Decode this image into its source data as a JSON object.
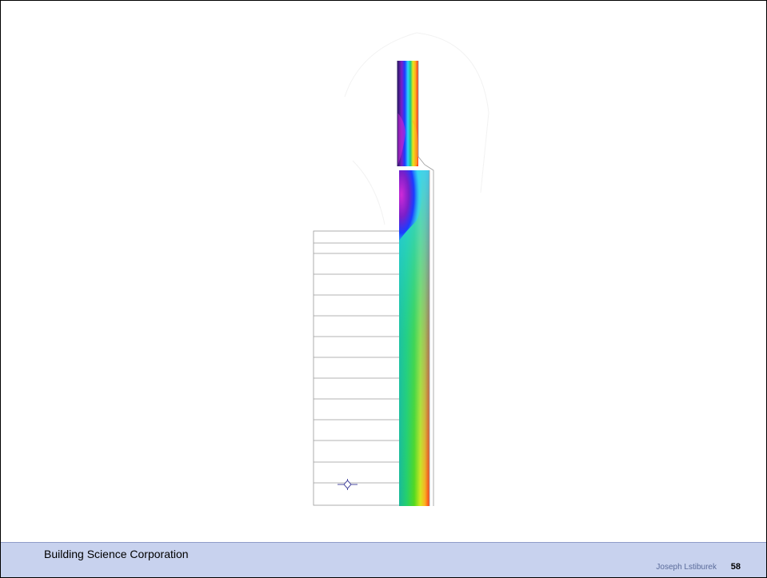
{
  "footer": {
    "company": "Building Science Corporation",
    "author": "Joseph Lstiburek",
    "page_number": "58",
    "background_color": "#c8d2ee"
  },
  "diagram": {
    "description_icon": "crosshair-marker-icon",
    "palette": [
      "#2b1a66",
      "#7a1fc9",
      "#d02ad8",
      "#1a3cff",
      "#2fd3ff",
      "#18c98a",
      "#53d11c",
      "#e6e61a",
      "#ffb020",
      "#ff2a1a"
    ]
  }
}
